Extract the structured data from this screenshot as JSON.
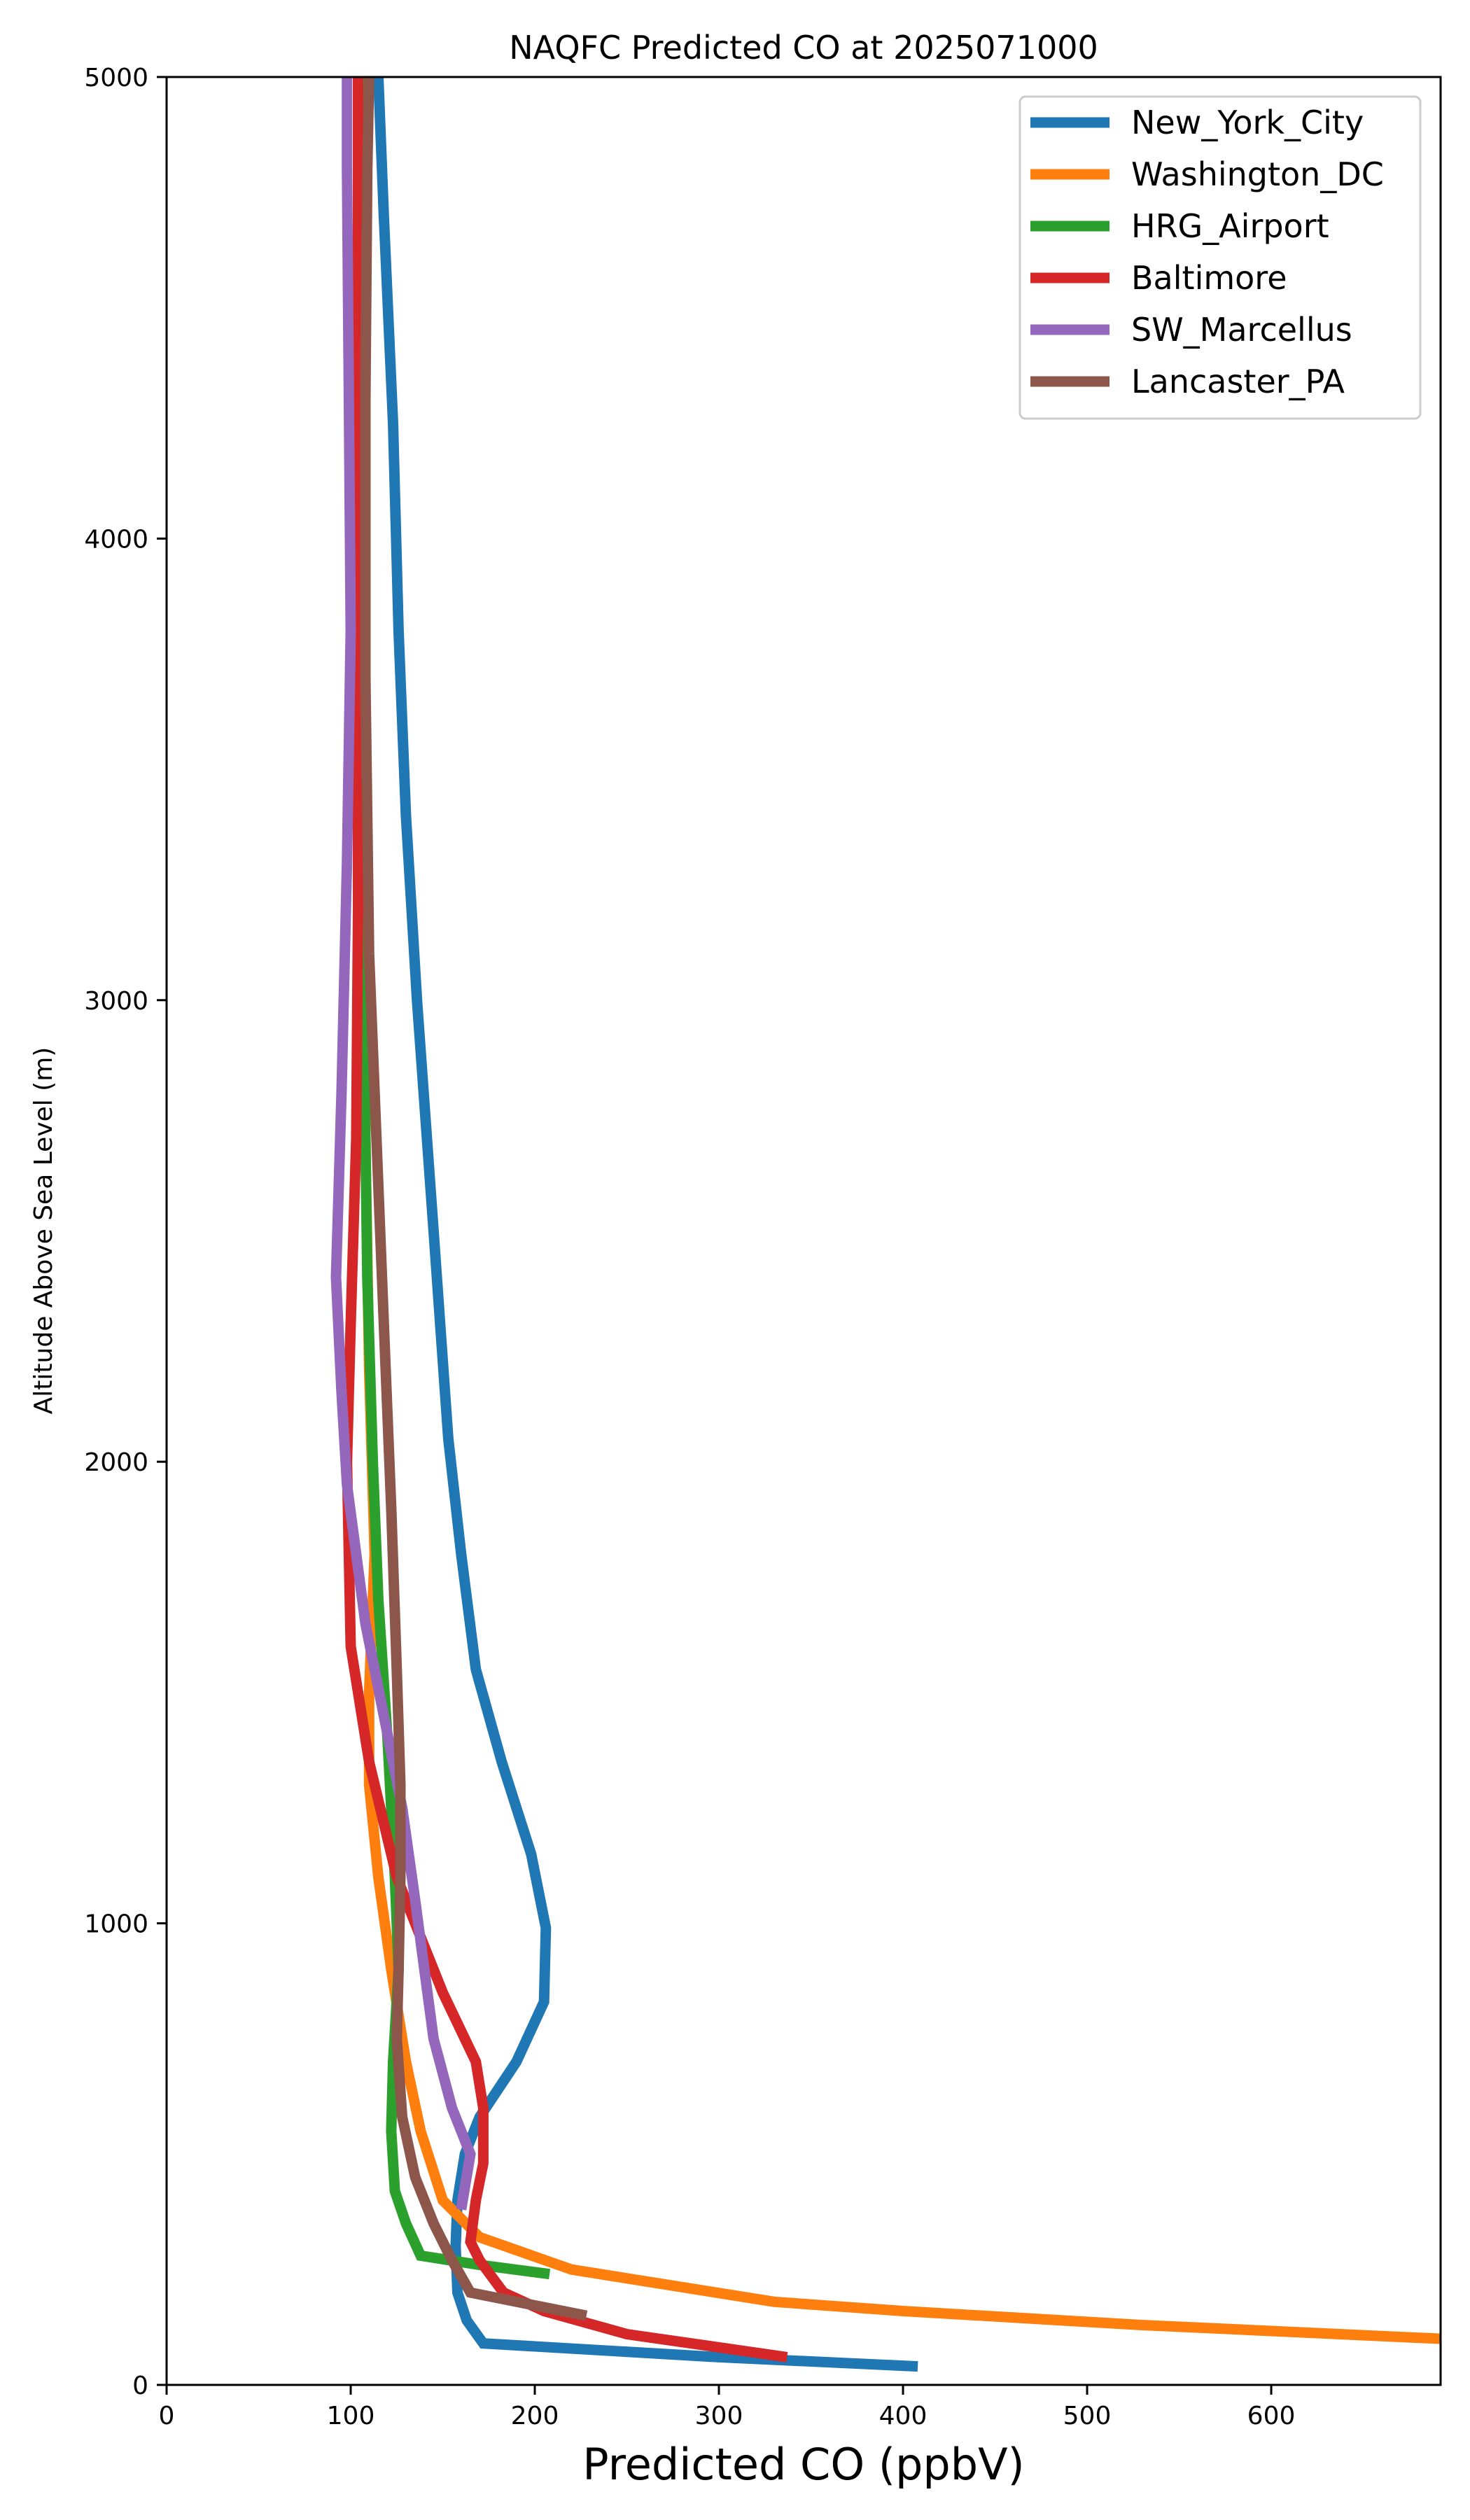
{
  "chart_data": {
    "type": "line",
    "title": "NAQFC Predicted CO at 2025071000",
    "xlabel": "Predicted CO (ppbV)",
    "ylabel": "Altitude Above Sea Level (m)",
    "xlim": [
      0,
      692
    ],
    "ylim": [
      0,
      5000
    ],
    "xticks": [
      0,
      100,
      200,
      300,
      400,
      500,
      600
    ],
    "yticks": [
      0,
      1000,
      2000,
      3000,
      4000,
      5000
    ],
    "grid": false,
    "legend_position": "top-right",
    "series": [
      {
        "name": "New_York_City",
        "color": "#1f77b4",
        "points": [
          [
            408,
            40
          ],
          [
            300,
            60
          ],
          [
            172,
            90
          ],
          [
            163,
            140
          ],
          [
            158,
            200
          ],
          [
            157,
            300
          ],
          [
            158,
            400
          ],
          [
            162,
            500
          ],
          [
            170,
            580
          ],
          [
            190,
            700
          ],
          [
            205,
            830
          ],
          [
            206,
            990
          ],
          [
            198,
            1150
          ],
          [
            182,
            1350
          ],
          [
            168,
            1550
          ],
          [
            160,
            1800
          ],
          [
            153,
            2050
          ],
          [
            145,
            2500
          ],
          [
            136,
            3000
          ],
          [
            130,
            3400
          ],
          [
            126,
            3800
          ],
          [
            123,
            4250
          ],
          [
            118,
            4700
          ],
          [
            115,
            5000
          ]
        ]
      },
      {
        "name": "Washington_DC",
        "color": "#ff7f0e",
        "points": [
          [
            692,
            100
          ],
          [
            528,
            130
          ],
          [
            400,
            160
          ],
          [
            330,
            180
          ],
          [
            220,
            250
          ],
          [
            170,
            320
          ],
          [
            150,
            400
          ],
          [
            138,
            550
          ],
          [
            130,
            700
          ],
          [
            122,
            900
          ],
          [
            115,
            1100
          ],
          [
            110,
            1300
          ],
          [
            110,
            1500
          ],
          [
            113,
            1800
          ],
          [
            110,
            2200
          ],
          [
            108,
            2700
          ],
          [
            107,
            3300
          ],
          [
            107,
            3900
          ],
          [
            106,
            4500
          ],
          [
            106,
            5000
          ]
        ]
      },
      {
        "name": "HRG_Airport",
        "color": "#2ca02c",
        "points": [
          [
            208,
            240
          ],
          [
            170,
            260
          ],
          [
            138,
            280
          ],
          [
            130,
            350
          ],
          [
            124,
            420
          ],
          [
            122,
            550
          ],
          [
            123,
            700
          ],
          [
            126,
            900
          ],
          [
            124,
            1100
          ],
          [
            120,
            1400
          ],
          [
            115,
            1700
          ],
          [
            112,
            2000
          ],
          [
            109,
            2400
          ],
          [
            107,
            3000
          ],
          [
            106,
            3600
          ],
          [
            105,
            4200
          ],
          [
            105,
            4800
          ],
          [
            105,
            5000
          ]
        ]
      },
      {
        "name": "Baltimore",
        "color": "#d62728",
        "points": [
          [
            337,
            60
          ],
          [
            250,
            110
          ],
          [
            205,
            160
          ],
          [
            183,
            200
          ],
          [
            170,
            270
          ],
          [
            165,
            310
          ],
          [
            168,
            400
          ],
          [
            172,
            480
          ],
          [
            172,
            600
          ],
          [
            168,
            700
          ],
          [
            150,
            850
          ],
          [
            125,
            1100
          ],
          [
            110,
            1350
          ],
          [
            100,
            1600
          ],
          [
            98,
            2000
          ],
          [
            100,
            2300
          ],
          [
            103,
            2700
          ],
          [
            104,
            3200
          ],
          [
            104,
            3800
          ],
          [
            104,
            4400
          ],
          [
            104,
            5000
          ]
        ]
      },
      {
        "name": "SW_Marcellus",
        "color": "#9467bd",
        "points": [
          [
            160,
            380
          ],
          [
            165,
            500
          ],
          [
            155,
            600
          ],
          [
            145,
            750
          ],
          [
            140,
            900
          ],
          [
            135,
            1050
          ],
          [
            128,
            1250
          ],
          [
            118,
            1450
          ],
          [
            108,
            1650
          ],
          [
            98,
            1950
          ],
          [
            95,
            2150
          ],
          [
            92,
            2400
          ],
          [
            95,
            2800
          ],
          [
            98,
            3300
          ],
          [
            100,
            3800
          ],
          [
            99,
            4300
          ],
          [
            98,
            4800
          ],
          [
            98,
            5000
          ]
        ]
      },
      {
        "name": "Lancaster_PA",
        "color": "#8c564b",
        "points": [
          [
            228,
            150
          ],
          [
            165,
            200
          ],
          [
            155,
            270
          ],
          [
            145,
            350
          ],
          [
            135,
            450
          ],
          [
            128,
            580
          ],
          [
            125,
            750
          ],
          [
            126,
            900
          ],
          [
            127,
            1100
          ],
          [
            127,
            1300
          ],
          [
            125,
            1550
          ],
          [
            122,
            1900
          ],
          [
            118,
            2300
          ],
          [
            114,
            2700
          ],
          [
            110,
            3100
          ],
          [
            108,
            3700
          ],
          [
            108,
            4300
          ],
          [
            109,
            4800
          ],
          [
            110,
            5000
          ]
        ]
      }
    ]
  }
}
